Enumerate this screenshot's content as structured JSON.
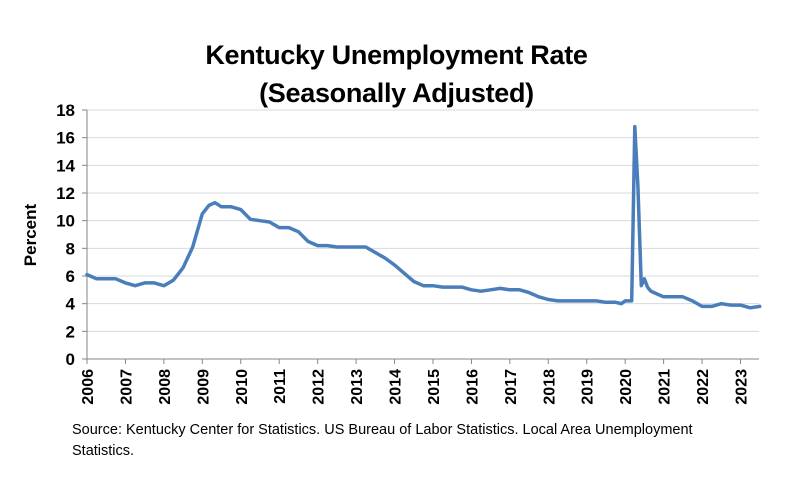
{
  "chart_data": {
    "type": "line",
    "title": "Kentucky Unemployment Rate",
    "subtitle": "(Seasonally Adjusted)",
    "xlabel": "",
    "ylabel": "Percent",
    "ylim": [
      0,
      18
    ],
    "yticks": [
      "0",
      "2",
      "4",
      "6",
      "8",
      "10",
      "12",
      "14",
      "16",
      "18"
    ],
    "xlim": [
      2006.0,
      2023.5
    ],
    "xticks": [
      "2006",
      "2007",
      "2008",
      "2009",
      "2010",
      "2011",
      "2012",
      "2013",
      "2014",
      "2015",
      "2016",
      "2017",
      "2018",
      "2019",
      "2020",
      "2021",
      "2022",
      "2023"
    ],
    "grid": true,
    "legend": "none",
    "line_color": "#4a7ebb",
    "series": [
      {
        "name": "Kentucky unemployment rate",
        "x": [
          2006.0,
          2006.25,
          2006.5,
          2006.75,
          2007.0,
          2007.25,
          2007.5,
          2007.75,
          2008.0,
          2008.25,
          2008.5,
          2008.75,
          2009.0,
          2009.17,
          2009.33,
          2009.5,
          2009.75,
          2010.0,
          2010.25,
          2010.5,
          2010.75,
          2011.0,
          2011.25,
          2011.5,
          2011.75,
          2012.0,
          2012.25,
          2012.5,
          2012.75,
          2013.0,
          2013.25,
          2013.5,
          2013.75,
          2014.0,
          2014.25,
          2014.5,
          2014.75,
          2015.0,
          2015.25,
          2015.5,
          2015.75,
          2016.0,
          2016.25,
          2016.5,
          2016.75,
          2017.0,
          2017.25,
          2017.5,
          2017.75,
          2018.0,
          2018.25,
          2018.5,
          2018.75,
          2019.0,
          2019.25,
          2019.5,
          2019.75,
          2019.9,
          2020.0,
          2020.17,
          2020.25,
          2020.33,
          2020.42,
          2020.5,
          2020.58,
          2020.67,
          2020.75,
          2021.0,
          2021.25,
          2021.5,
          2021.75,
          2022.0,
          2022.25,
          2022.5,
          2022.75,
          2023.0,
          2023.25,
          2023.5
        ],
        "y": [
          6.1,
          5.8,
          5.8,
          5.8,
          5.5,
          5.3,
          5.5,
          5.5,
          5.3,
          5.7,
          6.6,
          8.1,
          10.5,
          11.1,
          11.3,
          11.0,
          11.0,
          10.8,
          10.1,
          10.0,
          9.9,
          9.5,
          9.5,
          9.2,
          8.5,
          8.2,
          8.2,
          8.1,
          8.1,
          8.1,
          8.1,
          7.7,
          7.3,
          6.8,
          6.2,
          5.6,
          5.3,
          5.3,
          5.2,
          5.2,
          5.2,
          5.0,
          4.9,
          5.0,
          5.1,
          5.0,
          5.0,
          4.8,
          4.5,
          4.3,
          4.2,
          4.2,
          4.2,
          4.2,
          4.2,
          4.1,
          4.1,
          4.0,
          4.2,
          4.2,
          16.8,
          12.5,
          5.3,
          5.8,
          5.2,
          4.9,
          4.8,
          4.5,
          4.5,
          4.5,
          4.2,
          3.8,
          3.8,
          4.0,
          3.9,
          3.9,
          3.7,
          3.8
        ]
      }
    ]
  },
  "source_note": "Source: Kentucky Center for Statistics. US Bureau of Labor Statistics. Local Area Unemployment Statistics."
}
